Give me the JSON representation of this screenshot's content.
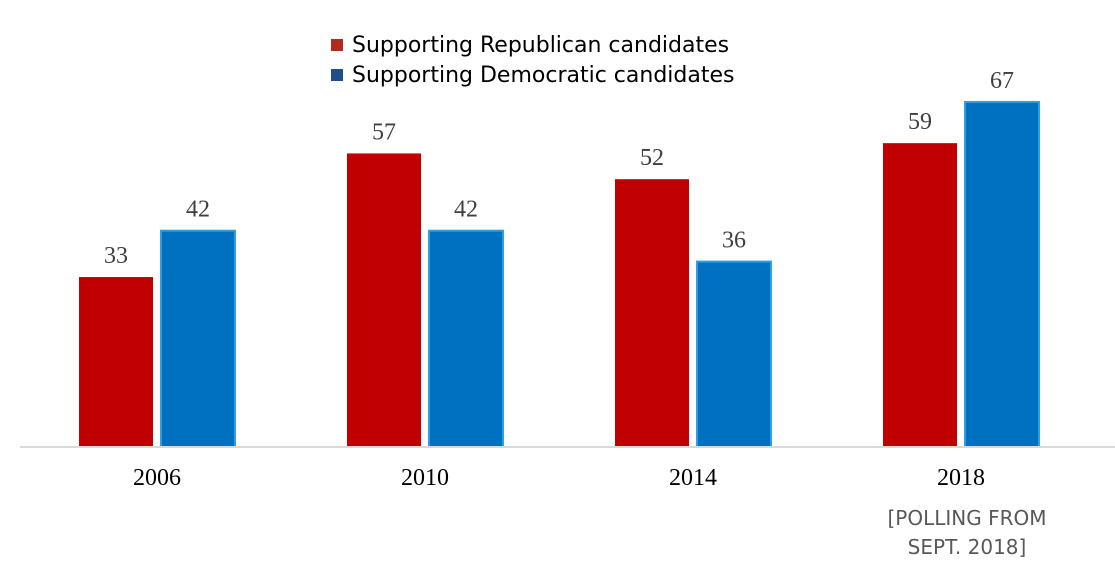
{
  "chart_data": {
    "type": "bar",
    "title": "",
    "xlabel": "",
    "ylabel": "",
    "ylim": [
      0,
      72
    ],
    "grid": false,
    "legend_position": "top-center",
    "categories": [
      "2006",
      "2010",
      "2014",
      "2018"
    ],
    "series": [
      {
        "name": "Supporting Republican candidates",
        "color": "#c00000",
        "legend_color": "#b22a1e",
        "values": [
          33,
          57,
          52,
          59
        ]
      },
      {
        "name": "Supporting Democratic candidates",
        "color": "#0070c0",
        "legend_color": "#1f4e8c",
        "values": [
          42,
          42,
          36,
          67
        ]
      }
    ],
    "annotations": {
      "note_line1": "[POLLING FROM",
      "note_line2": "SEPT. 2018]"
    }
  }
}
